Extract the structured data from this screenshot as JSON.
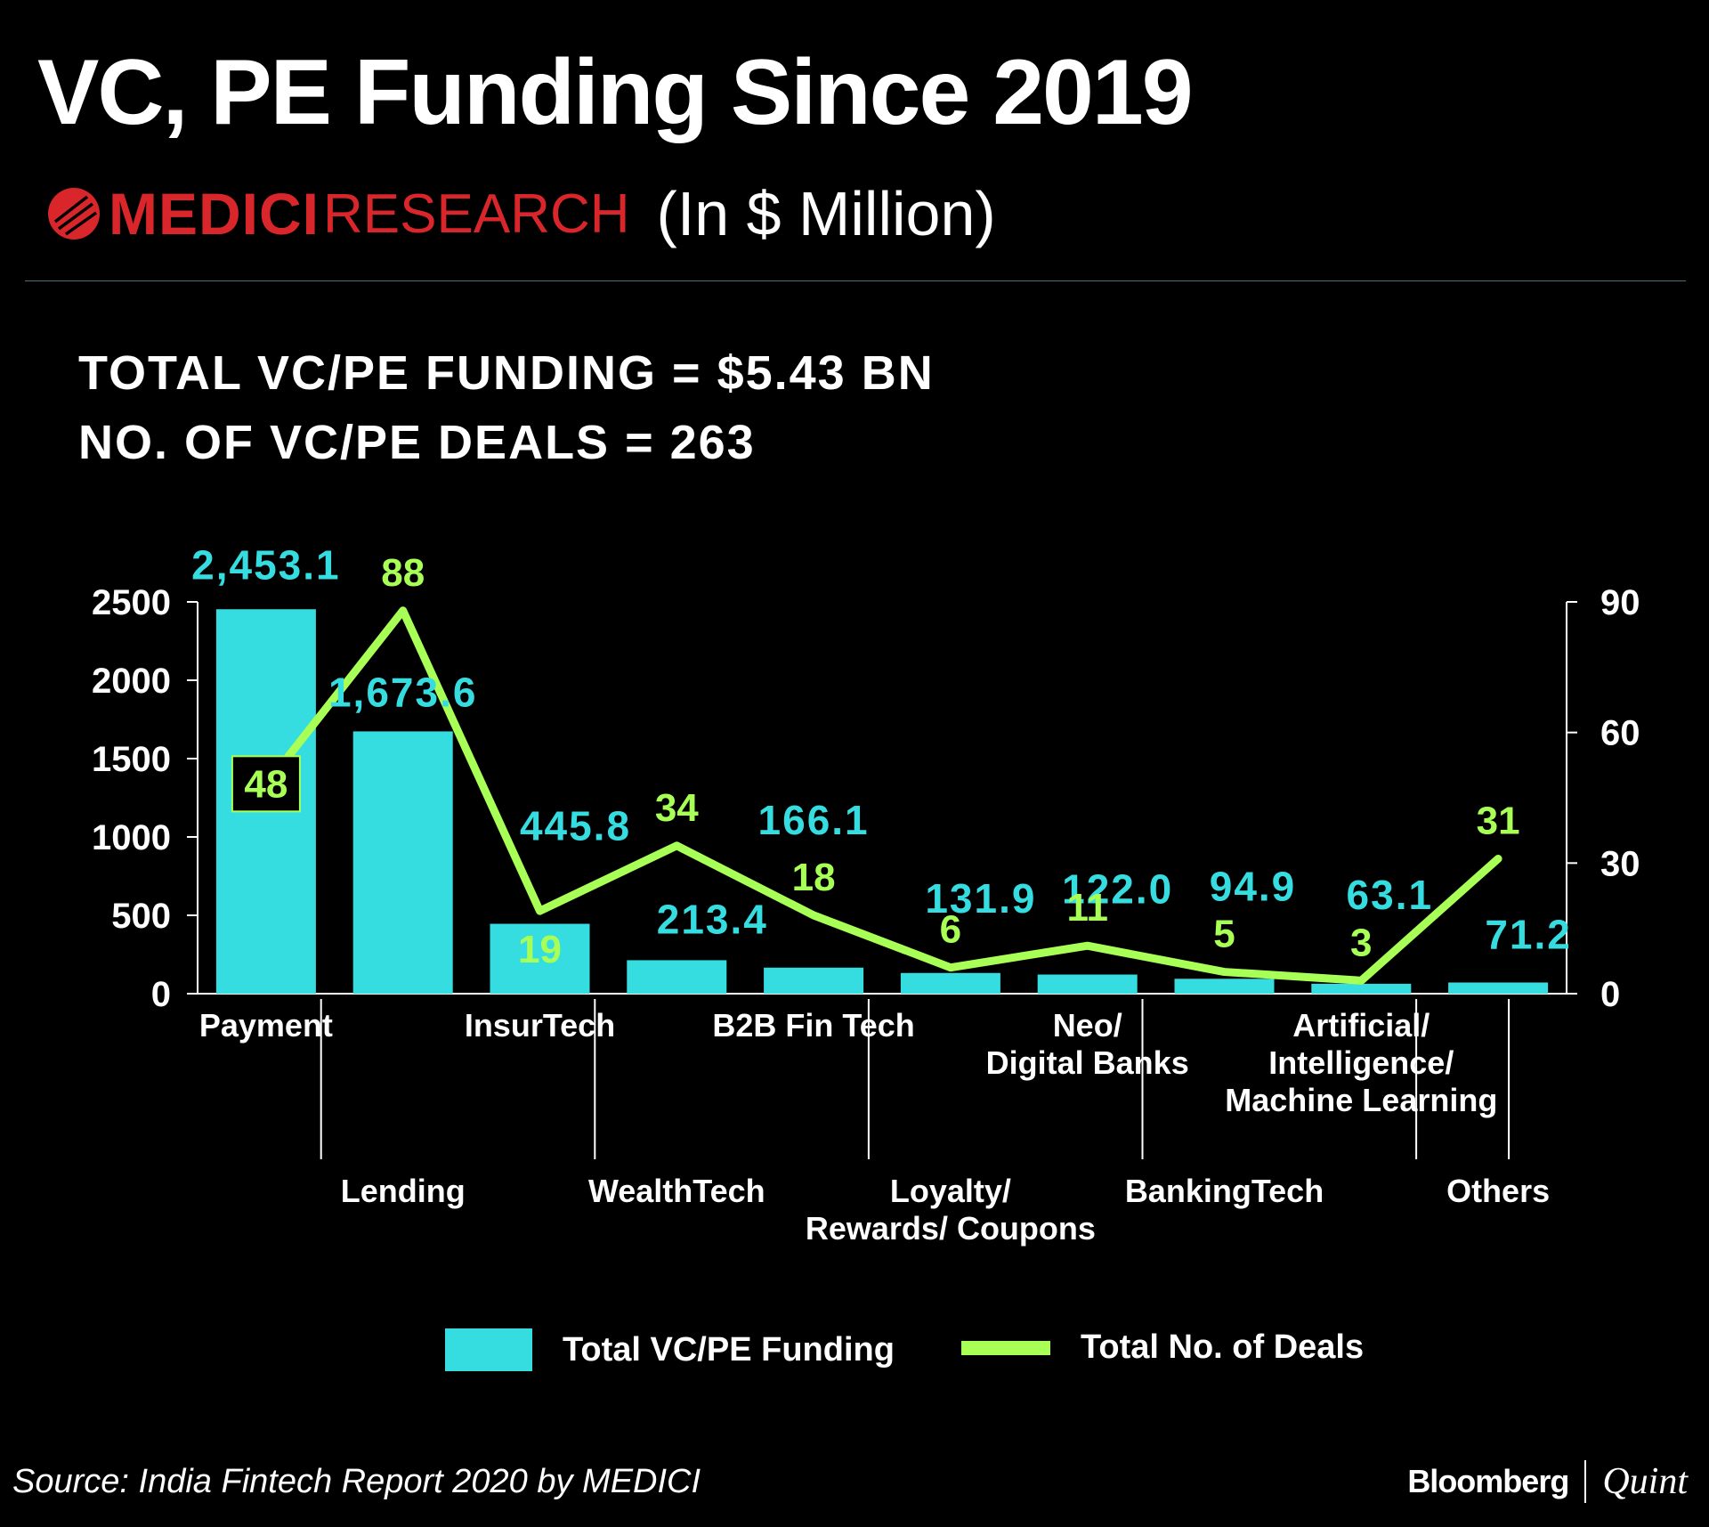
{
  "header": {
    "title": "VC, PE Funding Since 2019",
    "brand_name": "MEDICI",
    "brand_sub": "RESEARCH",
    "units": "(In $ Million)"
  },
  "summary": {
    "line1": "TOTAL VC/PE FUNDING = $5.43 BN",
    "line2": "NO. OF VC/PE DEALS = 263"
  },
  "colors": {
    "bar": "#36dde0",
    "line": "#a8ff55",
    "background": "#000000",
    "brand": "#d8262b"
  },
  "chart_data": {
    "type": "bar",
    "categories": [
      [
        "Payment"
      ],
      [
        "Lending"
      ],
      [
        "InsurTech"
      ],
      [
        "WealthTech"
      ],
      [
        "B2B Fin Tech"
      ],
      [
        "Loyalty/",
        "Rewards/ Coupons"
      ],
      [
        "Neo/",
        "Digital Banks"
      ],
      [
        "BankingTech"
      ],
      [
        "Artificial/",
        "Intelligence/",
        "Machine Learning"
      ],
      [
        "Others"
      ]
    ],
    "series": [
      {
        "name": "Total VC/PE Funding",
        "type": "bar",
        "axis": "left",
        "values": [
          2453.1,
          1673.6,
          445.8,
          213.4,
          166.1,
          131.9,
          122.0,
          94.9,
          63.1,
          71.2
        ],
        "labels": [
          "2,453.1",
          "1,673.6",
          "445.8",
          "213.4",
          "166.1",
          "131.9",
          "122.0",
          "94.9",
          "63.1",
          "71.2"
        ]
      },
      {
        "name": "Total No. of Deals",
        "type": "line",
        "axis": "right",
        "values": [
          48,
          88,
          19,
          34,
          18,
          6,
          11,
          5,
          3,
          31
        ],
        "labels": [
          "48",
          "88",
          "19",
          "34",
          "18",
          "6",
          "11",
          "5",
          "3",
          "31"
        ]
      }
    ],
    "y_left": {
      "min": 0,
      "max": 2500,
      "ticks": [
        "0",
        "500",
        "1000",
        "1500",
        "2000",
        "2500"
      ]
    },
    "y_right": {
      "min": 0,
      "max": 90,
      "ticks": [
        "0",
        "30",
        "60",
        "90"
      ]
    },
    "legend_position": "bottom"
  },
  "footer": {
    "source": "Source: India Fintech Report 2020 by MEDICI",
    "brand1": "Bloomberg",
    "brand2": "Quint"
  }
}
